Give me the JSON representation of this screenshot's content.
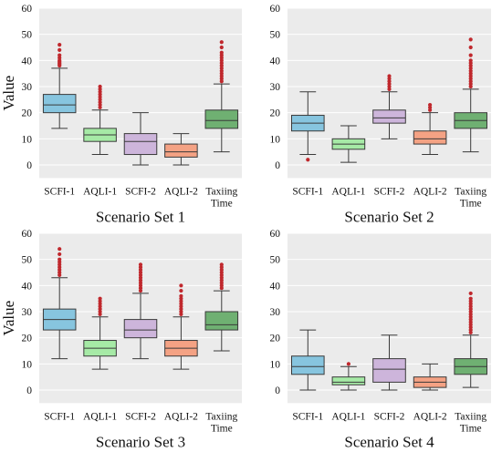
{
  "chart_data": [
    {
      "type": "box",
      "title": "Scenario Set 1",
      "ylabel": "Value",
      "xlabel": "",
      "ylim": [
        -5,
        60
      ],
      "yticks": [
        0,
        10,
        20,
        30,
        40,
        50,
        60
      ],
      "grid": true,
      "categories": [
        "SCFI-1",
        "AQLI-1",
        "SCFI-2",
        "AQLI-2",
        "Taxiing Time"
      ],
      "boxes": [
        {
          "min": 14,
          "q1": 20,
          "median": 23,
          "q3": 27,
          "max": 37,
          "outliers": [
            38,
            38.5,
            39,
            39.5,
            40,
            41,
            42,
            44,
            46
          ]
        },
        {
          "min": 4,
          "q1": 9,
          "median": 11.5,
          "q3": 14,
          "max": 21,
          "outliers": [
            22,
            23,
            24,
            25,
            26,
            27,
            28,
            29,
            30
          ]
        },
        {
          "min": 0,
          "q1": 4,
          "median": 9,
          "q3": 12,
          "max": 20,
          "outliers": []
        },
        {
          "min": 0,
          "q1": 3,
          "median": 5,
          "q3": 8,
          "max": 12,
          "outliers": []
        },
        {
          "min": 5,
          "q1": 14,
          "median": 17,
          "q3": 21,
          "max": 31,
          "outliers": [
            32,
            33,
            34,
            35,
            36,
            37,
            38,
            39,
            40,
            41,
            42,
            43,
            45,
            47
          ]
        }
      ]
    },
    {
      "type": "box",
      "title": "Scenario Set 2",
      "ylabel": "",
      "xlabel": "",
      "ylim": [
        -5,
        60
      ],
      "yticks": [
        0,
        10,
        20,
        30,
        40,
        50,
        60
      ],
      "grid": true,
      "categories": [
        "SCFI-1",
        "AQLI-1",
        "SCFI-2",
        "AQLI-2",
        "Taxiing Time"
      ],
      "boxes": [
        {
          "min": 4,
          "q1": 13,
          "median": 16,
          "q3": 19,
          "max": 28,
          "outliers": [
            2
          ]
        },
        {
          "min": 1,
          "q1": 6,
          "median": 8,
          "q3": 10,
          "max": 15,
          "outliers": []
        },
        {
          "min": 10,
          "q1": 16,
          "median": 18,
          "q3": 21,
          "max": 28,
          "outliers": [
            29,
            30,
            31,
            32,
            33,
            34
          ]
        },
        {
          "min": 4,
          "q1": 8,
          "median": 10,
          "q3": 13,
          "max": 20,
          "outliers": [
            21,
            22,
            23
          ]
        },
        {
          "min": 5,
          "q1": 14,
          "median": 17,
          "q3": 20,
          "max": 29,
          "outliers": [
            30,
            31,
            32,
            33,
            34,
            35,
            36,
            37,
            38,
            39,
            40,
            42,
            45,
            48
          ]
        }
      ]
    },
    {
      "type": "box",
      "title": "Scenario Set 3",
      "ylabel": "Value",
      "xlabel": "",
      "ylim": [
        -5,
        60
      ],
      "yticks": [
        0,
        10,
        20,
        30,
        40,
        50,
        60
      ],
      "grid": true,
      "categories": [
        "SCFI-1",
        "AQLI-1",
        "SCFI-2",
        "AQLI-2",
        "Taxiing Time"
      ],
      "boxes": [
        {
          "min": 12,
          "q1": 23,
          "median": 27,
          "q3": 31,
          "max": 43,
          "outliers": [
            44,
            45,
            46,
            47,
            48,
            49,
            50,
            52,
            54
          ]
        },
        {
          "min": 8,
          "q1": 13,
          "median": 16,
          "q3": 19,
          "max": 28,
          "outliers": [
            29,
            30,
            31,
            32,
            33,
            34,
            35
          ]
        },
        {
          "min": 12,
          "q1": 20,
          "median": 23,
          "q3": 27,
          "max": 37,
          "outliers": [
            38,
            39,
            40,
            41,
            42,
            43,
            44,
            45,
            46,
            47,
            48
          ]
        },
        {
          "min": 8,
          "q1": 13,
          "median": 16,
          "q3": 19,
          "max": 28,
          "outliers": [
            29,
            30,
            31,
            32,
            33,
            34,
            35,
            36,
            38,
            40
          ]
        },
        {
          "min": 15,
          "q1": 23,
          "median": 25,
          "q3": 30,
          "max": 38,
          "outliers": [
            39,
            40,
            41,
            42,
            43,
            44,
            45,
            46,
            47,
            48
          ]
        }
      ]
    },
    {
      "type": "box",
      "title": "Scenario Set 4",
      "ylabel": "",
      "xlabel": "",
      "ylim": [
        -5,
        60
      ],
      "yticks": [
        0,
        10,
        20,
        30,
        40,
        50,
        60
      ],
      "grid": true,
      "categories": [
        "SCFI-1",
        "AQLI-1",
        "SCFI-2",
        "AQLI-2",
        "Taxiing Time"
      ],
      "boxes": [
        {
          "min": 0,
          "q1": 6,
          "median": 9,
          "q3": 13,
          "max": 23,
          "outliers": []
        },
        {
          "min": 0,
          "q1": 2,
          "median": 3,
          "q3": 5,
          "max": 9,
          "outliers": [
            10
          ]
        },
        {
          "min": 0,
          "q1": 3,
          "median": 8,
          "q3": 12,
          "max": 21,
          "outliers": []
        },
        {
          "min": 0,
          "q1": 1,
          "median": 3,
          "q3": 5,
          "max": 10,
          "outliers": []
        },
        {
          "min": 1,
          "q1": 6,
          "median": 9,
          "q3": 12,
          "max": 21,
          "outliers": [
            22,
            23,
            24,
            25,
            26,
            27,
            28,
            29,
            30,
            31,
            32,
            33,
            34,
            35,
            37
          ]
        }
      ]
    }
  ],
  "style": {
    "panel_bg": "#ebebeb",
    "grid_color": "#ffffff",
    "box_colors": [
      "#87c5df",
      "#a6eaa6",
      "#cdb5db",
      "#f4a284",
      "#6fb072"
    ],
    "outlier_color": "#c0282d",
    "line_color": "#3a3a3a"
  }
}
